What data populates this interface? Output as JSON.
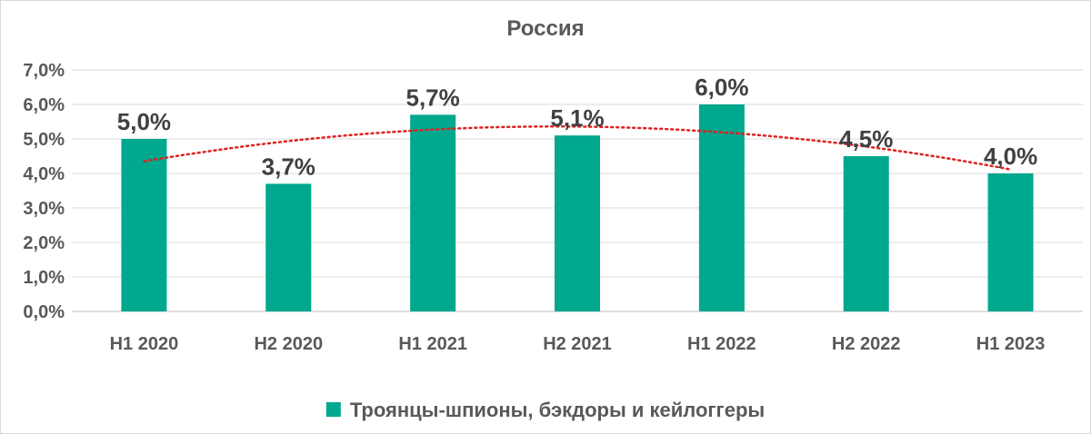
{
  "chart_data": {
    "type": "bar",
    "title": "Россия",
    "categories": [
      "H1 2020",
      "H2 2020",
      "H1 2021",
      "H2 2021",
      "H1 2022",
      "H2 2022",
      "H1 2023"
    ],
    "series": [
      {
        "name": "Троянцы-шпионы, бэкдоры и кейлоггеры",
        "values": [
          5.0,
          3.7,
          5.7,
          5.1,
          6.0,
          4.5,
          4.0
        ],
        "labels": [
          "5,0%",
          "3,7%",
          "5,7%",
          "5,1%",
          "6,0%",
          "4,5%",
          "4,0%"
        ],
        "color": "#00A88E"
      }
    ],
    "trendline": {
      "type": "polynomial",
      "color": "#E02020",
      "style": "dotted"
    },
    "ylim": [
      0,
      7
    ],
    "yticks": [
      "0,0%",
      "1,0%",
      "2,0%",
      "3,0%",
      "4,0%",
      "5,0%",
      "6,0%",
      "7,0%"
    ],
    "gridlines": true,
    "legend_position": "bottom"
  }
}
